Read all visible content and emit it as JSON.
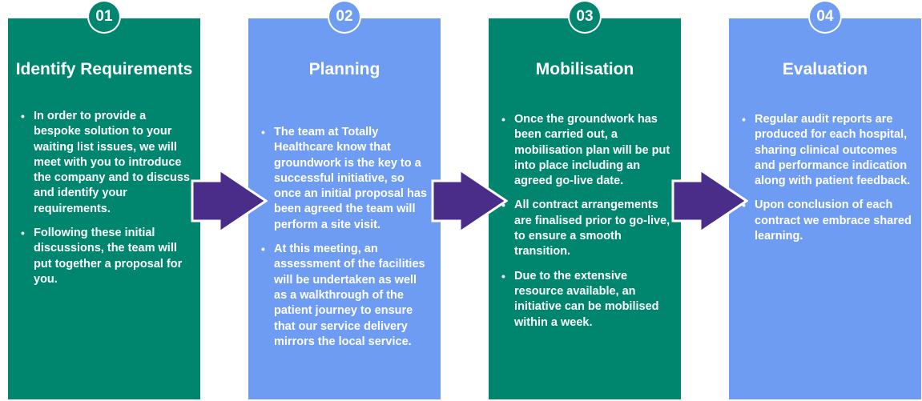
{
  "colors": {
    "teal": "#00866e",
    "blue": "#6f9cf3",
    "arrow": "#4a2d88",
    "arrow_border": "#ffffff"
  },
  "steps": [
    {
      "number": "01",
      "title": "Identify Requirements",
      "bullets": [
        "In order to provide a bespoke solution to your waiting list issues, we will meet with you to introduce the company and to discuss and identify your requirements.",
        "Following these initial discussions, the team will put together a proposal for you."
      ]
    },
    {
      "number": "02",
      "title": "Planning",
      "bullets": [
        "The team at Totally Healthcare know that groundwork is the key to a successful initiative, so once an initial proposal has been agreed the team will perform a site visit.",
        "At this meeting, an assessment of the facilities will be undertaken as well as a walkthrough of the patient journey to ensure that our service delivery mirrors the local service."
      ]
    },
    {
      "number": "03",
      "title": "Mobilisation",
      "bullets": [
        "Once the groundwork has been carried out, a mobilisation plan will be put into place including an agreed go-live date.",
        "All contract arrangements are finalised prior to go-live, to ensure a smooth transition.",
        "Due to the extensive resource available, an initiative can be mobilised within a week."
      ]
    },
    {
      "number": "04",
      "title": "Evaluation",
      "bullets": [
        "Regular audit reports are produced for each hospital, sharing clinical outcomes and performance indication along with patient feedback.",
        "Upon conclusion of each contract we embrace shared learning."
      ]
    }
  ]
}
